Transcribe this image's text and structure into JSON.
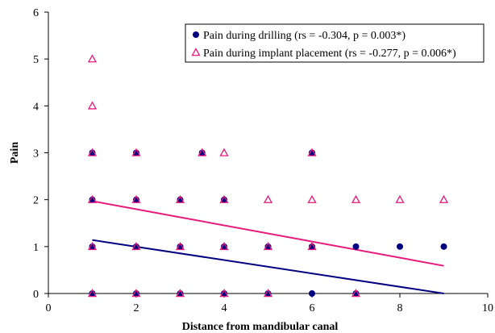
{
  "chart_data": {
    "type": "scatter",
    "title": "",
    "xlabel": "Distance from mandibular canal",
    "ylabel": "Pain",
    "xlim": [
      0,
      10
    ],
    "ylim": [
      0,
      6
    ],
    "xticks": [
      0,
      2,
      4,
      6,
      8,
      10
    ],
    "yticks": [
      0,
      1,
      2,
      3,
      4,
      5,
      6
    ],
    "grid": false,
    "legend_position": "top-right",
    "series": [
      {
        "name": "Pain during drilling (rs = -0.304, p = 0.003*)",
        "marker": "filled-circle",
        "color": "#000080",
        "points": [
          [
            1,
            0
          ],
          [
            1,
            1
          ],
          [
            1,
            2
          ],
          [
            1,
            3
          ],
          [
            2,
            0
          ],
          [
            2,
            1
          ],
          [
            2,
            2
          ],
          [
            2,
            3
          ],
          [
            3,
            0
          ],
          [
            3,
            1
          ],
          [
            3,
            2
          ],
          [
            3.5,
            3
          ],
          [
            4,
            0
          ],
          [
            4,
            1
          ],
          [
            4,
            2
          ],
          [
            5,
            0
          ],
          [
            5,
            1
          ],
          [
            6,
            0
          ],
          [
            6,
            1
          ],
          [
            6,
            3
          ],
          [
            7,
            0
          ],
          [
            7,
            1
          ],
          [
            8,
            1
          ],
          [
            9,
            1
          ]
        ],
        "trendline": [
          [
            1,
            1.14
          ],
          [
            9,
            0.0
          ]
        ]
      },
      {
        "name": "Pain during implant placement (rs = -0.277, p = 0.006*)",
        "marker": "open-triangle",
        "color": "#e8197a",
        "points": [
          [
            1,
            0
          ],
          [
            1,
            1
          ],
          [
            1,
            2
          ],
          [
            1,
            3
          ],
          [
            1,
            4
          ],
          [
            1,
            5
          ],
          [
            2,
            0
          ],
          [
            2,
            1
          ],
          [
            2,
            2
          ],
          [
            2,
            3
          ],
          [
            3,
            0
          ],
          [
            3,
            1
          ],
          [
            3,
            2
          ],
          [
            3.5,
            3
          ],
          [
            4,
            0
          ],
          [
            4,
            1
          ],
          [
            4,
            2
          ],
          [
            4,
            3
          ],
          [
            5,
            0
          ],
          [
            5,
            1
          ],
          [
            5,
            2
          ],
          [
            6,
            1
          ],
          [
            6,
            2
          ],
          [
            6,
            3
          ],
          [
            7,
            0
          ],
          [
            7,
            2
          ],
          [
            8,
            2
          ],
          [
            9,
            2
          ]
        ],
        "trendline": [
          [
            1,
            1.97
          ],
          [
            9,
            0.59
          ]
        ]
      }
    ]
  }
}
